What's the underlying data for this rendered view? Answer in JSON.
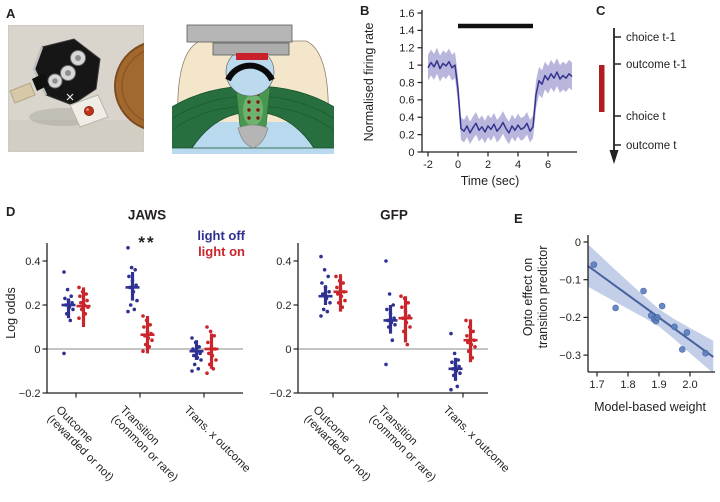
{
  "panel_labels": {
    "a": "A",
    "b": "B",
    "c": "C",
    "d": "D",
    "e": "E"
  },
  "colors": {
    "light_off": "#2e3192",
    "light_on": "#c9252b",
    "b_line": "#35348e",
    "b_band": "#b9b6de",
    "stim_bar": "#111111",
    "zero_line": "#8a8a8a",
    "axis": "#231f20",
    "e_point": "#5c7fbf",
    "e_line": "#46619c",
    "e_band": "#a3b6dd",
    "timeline_red": "#b01c22",
    "diagram_tan": "#f4e6cb",
    "diagram_green_dark": "#276f3e",
    "diagram_green_mid": "#48974f",
    "diagram_blue": "#b9d9ef",
    "diagram_gray": "#b6b6b6"
  },
  "panel_c": {
    "events": [
      "choice t-1",
      "outcome t-1",
      "choice t",
      "outcome t"
    ],
    "stim_span": {
      "from": "outcome t-1",
      "to": "choice t"
    }
  },
  "chart_data": [
    {
      "id": "b",
      "type": "line",
      "ylabel": "Normalised firing rate",
      "xlabel": "Time (sec)",
      "ylim": [
        0,
        1.6
      ],
      "xlim": [
        -2.4,
        8.1
      ],
      "yticks": [
        0,
        0.2,
        0.4,
        0.6,
        0.8,
        1,
        1.2,
        1.4,
        1.6
      ],
      "ytick_labels": [
        "0",
        "0.2",
        "0.4",
        "0.6",
        "0.8",
        "1",
        "1.2",
        "1.4",
        "1.6"
      ],
      "xticks": [
        -2,
        0,
        2,
        4,
        6
      ],
      "xtick_labels": [
        "-2",
        "0",
        "2",
        "4",
        "6"
      ],
      "stim_bar": {
        "x_start": 0,
        "x_end": 5,
        "y": 1.45
      },
      "x": [
        -2,
        -1.8,
        -1.6,
        -1.4,
        -1.2,
        -1,
        -0.8,
        -0.6,
        -0.4,
        -0.2,
        0,
        0.2,
        0.4,
        0.6,
        0.8,
        1,
        1.2,
        1.4,
        1.6,
        1.8,
        2,
        2.2,
        2.4,
        2.6,
        2.8,
        3,
        3.2,
        3.4,
        3.6,
        3.8,
        4,
        4.2,
        4.4,
        4.6,
        4.8,
        5,
        5.2,
        5.4,
        5.6,
        5.8,
        6,
        6.2,
        6.4,
        6.6,
        6.8,
        7,
        7.2,
        7.4,
        7.6
      ],
      "mean": [
        0.97,
        1.03,
        0.98,
        1.05,
        0.96,
        1.02,
        0.99,
        1.04,
        0.97,
        1.0,
        0.72,
        0.27,
        0.24,
        0.3,
        0.22,
        0.28,
        0.33,
        0.25,
        0.29,
        0.23,
        0.3,
        0.26,
        0.32,
        0.24,
        0.28,
        0.34,
        0.27,
        0.22,
        0.3,
        0.25,
        0.31,
        0.26,
        0.28,
        0.33,
        0.24,
        0.29,
        0.66,
        0.82,
        0.78,
        0.88,
        0.83,
        0.9,
        0.85,
        0.92,
        0.84,
        0.88,
        0.85,
        0.9,
        0.87
      ],
      "band_halfwidth": [
        0.15,
        0.15,
        0.15,
        0.15,
        0.15,
        0.15,
        0.15,
        0.15,
        0.15,
        0.15,
        0.15,
        0.13,
        0.13,
        0.13,
        0.13,
        0.13,
        0.13,
        0.13,
        0.13,
        0.13,
        0.13,
        0.13,
        0.13,
        0.13,
        0.13,
        0.13,
        0.13,
        0.13,
        0.13,
        0.13,
        0.13,
        0.13,
        0.13,
        0.13,
        0.13,
        0.13,
        0.16,
        0.16,
        0.16,
        0.16,
        0.16,
        0.16,
        0.16,
        0.16,
        0.16,
        0.16,
        0.16,
        0.16,
        0.16
      ]
    },
    {
      "id": "d_jaws",
      "type": "dot_columns",
      "title": "JAWS",
      "significance": "**",
      "ylabel": "Log odds",
      "ylim": [
        -0.2,
        0.48
      ],
      "yticks": [
        -0.2,
        0,
        0.2,
        0.4
      ],
      "ytick_labels": [
        "−0.2",
        "0",
        "0.2",
        "0.4"
      ],
      "categories": [
        [
          "Outcome",
          "(rewarded or not)"
        ],
        [
          "Transition",
          "(common or rare)"
        ],
        [
          "Trans. x outcome"
        ]
      ],
      "series": [
        {
          "name": "light off",
          "color_key": "light_off",
          "groups": [
            {
              "mean": 0.2,
              "lo": 0.14,
              "hi": 0.23,
              "points": [
                0.35,
                0.27,
                0.24,
                0.23,
                0.22,
                0.21,
                0.2,
                0.19,
                0.18,
                0.16,
                0.13,
                -0.02
              ]
            },
            {
              "mean": 0.28,
              "lo": 0.22,
              "hi": 0.35,
              "points": [
                0.46,
                0.37,
                0.36,
                0.33,
                0.31,
                0.29,
                0.28,
                0.26,
                0.22,
                0.2,
                0.18,
                0.17
              ]
            },
            {
              "mean": -0.01,
              "lo": -0.05,
              "hi": 0.04,
              "points": [
                0.05,
                0.03,
                0.01,
                0,
                -0.01,
                -0.02,
                -0.03,
                -0.04,
                -0.05,
                -0.07,
                -0.09,
                -0.1
              ]
            }
          ]
        },
        {
          "name": "light on",
          "color_key": "light_on",
          "groups": [
            {
              "mean": 0.195,
              "lo": 0.1,
              "hi": 0.28,
              "points": [
                0.28,
                0.26,
                0.25,
                0.24,
                0.23,
                0.22,
                0.21,
                0.2,
                0.19,
                0.18,
                0.16,
                0.14
              ]
            },
            {
              "mean": 0.065,
              "lo": -0.02,
              "hi": 0.15,
              "points": [
                0.15,
                0.13,
                0.11,
                0.1,
                0.08,
                0.07,
                0.06,
                0.05,
                0.04,
                0.02,
                0.01,
                -0.01
              ]
            },
            {
              "mean": 0,
              "lo": -0.09,
              "hi": 0.07,
              "points": [
                0.1,
                0.08,
                0.06,
                0.03,
                0.01,
                0,
                -0.02,
                -0.03,
                -0.05,
                -0.07,
                -0.09,
                -0.11
              ]
            }
          ]
        }
      ]
    },
    {
      "id": "d_gfp",
      "type": "dot_columns",
      "title": "GFP",
      "significance": "",
      "ylabel": "",
      "ylim": [
        -0.2,
        0.48
      ],
      "yticks": [
        -0.2,
        0,
        0.2,
        0.4
      ],
      "ytick_labels": [
        "−0.2",
        "0",
        "0.2",
        "0.4"
      ],
      "categories": [
        [
          "Outcome",
          "(rewarded or not)"
        ],
        [
          "Transition",
          "(common or rare)"
        ],
        [
          "Trans. x outcome"
        ]
      ],
      "series": [
        {
          "name": "light off",
          "color_key": "light_off",
          "groups": [
            {
              "mean": 0.24,
              "lo": 0.2,
              "hi": 0.29,
              "points": [
                0.42,
                0.36,
                0.33,
                0.3,
                0.28,
                0.26,
                0.25,
                0.23,
                0.21,
                0.18,
                0.17,
                0.15
              ]
            },
            {
              "mean": 0.13,
              "lo": 0.07,
              "hi": 0.2,
              "points": [
                0.4,
                0.25,
                0.2,
                0.18,
                0.16,
                0.14,
                0.13,
                0.12,
                0.11,
                0.1,
                0.04,
                -0.07
              ]
            },
            {
              "mean": -0.09,
              "lo": -0.145,
              "hi": -0.04,
              "points": [
                0.07,
                -0.02,
                -0.05,
                -0.06,
                -0.07,
                -0.08,
                -0.09,
                -0.1,
                -0.11,
                -0.12,
                -0.17,
                -0.185
              ]
            }
          ]
        },
        {
          "name": "light on",
          "color_key": "light_on",
          "groups": [
            {
              "mean": 0.26,
              "lo": 0.17,
              "hi": 0.34,
              "points": [
                0.33,
                0.31,
                0.3,
                0.28,
                0.27,
                0.26,
                0.25,
                0.24,
                0.22,
                0.21,
                0.19
              ]
            },
            {
              "mean": 0.14,
              "lo": 0.03,
              "hi": 0.24,
              "points": [
                0.24,
                0.23,
                0.21,
                0.19,
                0.17,
                0.15,
                0.14,
                0.12,
                0.1,
                0.08,
                0.02
              ]
            },
            {
              "mean": 0.04,
              "lo": -0.06,
              "hi": 0.135,
              "points": [
                0.13,
                0.1,
                0.08,
                0.06,
                0.05,
                0.04,
                0.03,
                0.02,
                0.01,
                -0.01,
                -0.04
              ]
            }
          ]
        }
      ]
    },
    {
      "id": "e",
      "type": "scatter",
      "xlabel": "Model-based weight",
      "ylabel": [
        "Opto effect on",
        "transition predictor"
      ],
      "xlim": [
        1.67,
        2.08
      ],
      "ylim": [
        -0.345,
        0.02
      ],
      "xticks": [
        1.7,
        1.8,
        1.9,
        2.0
      ],
      "xtick_labels": [
        "1.7",
        "1.8",
        "1.9",
        "2.0"
      ],
      "yticks": [
        0,
        -0.1,
        -0.2,
        -0.3
      ],
      "ytick_labels": [
        "0",
        "−0.1",
        "−0.2",
        "−0.3"
      ],
      "points": [
        [
          1.69,
          -0.06
        ],
        [
          1.76,
          -0.175
        ],
        [
          1.85,
          -0.13
        ],
        [
          1.875,
          -0.195
        ],
        [
          1.885,
          -0.205
        ],
        [
          1.89,
          -0.21
        ],
        [
          1.895,
          -0.2
        ],
        [
          1.91,
          -0.17
        ],
        [
          1.95,
          -0.225
        ],
        [
          1.99,
          -0.24
        ],
        [
          1.975,
          -0.285
        ],
        [
          2.05,
          -0.295
        ]
      ],
      "fit_line": {
        "x1": 1.67,
        "y1": -0.063,
        "x2": 2.075,
        "y2": -0.305
      },
      "ci_band": [
        [
          1.67,
          -0.005,
          -0.118
        ],
        [
          1.75,
          -0.067,
          -0.155
        ],
        [
          1.85,
          -0.142,
          -0.2
        ],
        [
          1.9,
          -0.178,
          -0.224
        ],
        [
          1.95,
          -0.205,
          -0.258
        ],
        [
          2.0,
          -0.228,
          -0.295
        ],
        [
          2.075,
          -0.262,
          -0.348
        ]
      ]
    }
  ]
}
